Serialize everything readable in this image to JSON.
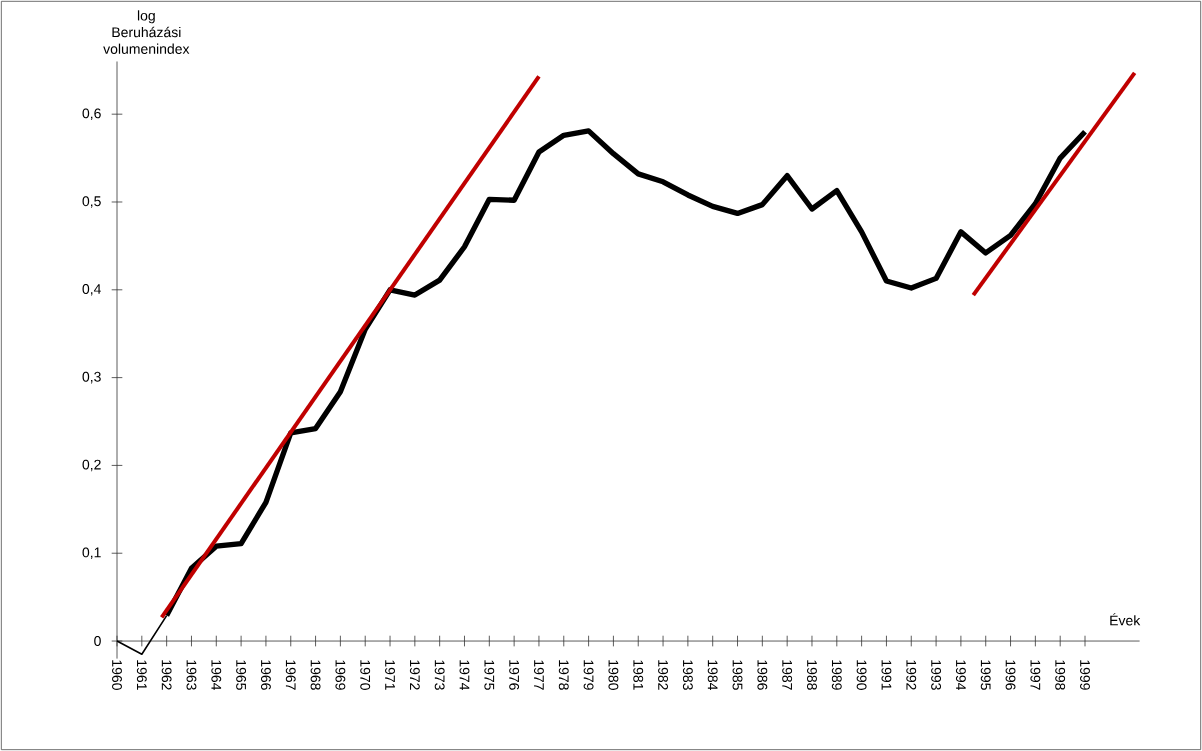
{
  "chart_data": {
    "type": "line",
    "ylabel": "log Beruházási volumenindex",
    "xlabel": "Évek",
    "xlim": [
      1960,
      2001.2
    ],
    "ylim": [
      -0.02,
      0.66
    ],
    "xticks": [
      1960,
      1961,
      1962,
      1963,
      1964,
      1965,
      1966,
      1967,
      1968,
      1969,
      1970,
      1971,
      1972,
      1973,
      1974,
      1975,
      1976,
      1977,
      1978,
      1979,
      1980,
      1981,
      1982,
      1983,
      1984,
      1985,
      1986,
      1987,
      1988,
      1989,
      1990,
      1991,
      1992,
      1993,
      1994,
      1995,
      1996,
      1997,
      1998,
      1999
    ],
    "yticks": [
      0,
      {
        "value": 0.1,
        "label": "0,1"
      },
      {
        "value": 0.2,
        "label": "0,2"
      },
      {
        "value": 0.3,
        "label": "0,3"
      },
      {
        "value": 0.4,
        "label": "0,4"
      },
      {
        "value": 0.5,
        "label": "0,5"
      },
      {
        "value": 0.6,
        "label": "0,6"
      }
    ],
    "series": [
      {
        "color": "#000000",
        "x": [
          1960,
          1961,
          1962
        ],
        "values": [
          0,
          -0.015,
          0.029
        ]
      },
      {
        "color": "#000000",
        "x": [
          1962,
          1963,
          1964,
          1965,
          1966,
          1967,
          1968,
          1969,
          1970,
          1971,
          1972,
          1973,
          1974,
          1975,
          1976,
          1977,
          1978,
          1979,
          1980,
          1981,
          1982,
          1983,
          1984,
          1985,
          1986,
          1987,
          1988,
          1989,
          1990,
          1991,
          1992,
          1993,
          1994,
          1995,
          1996,
          1997,
          1998,
          1999
        ],
        "values": [
          0.029,
          0.083,
          0.108,
          0.111,
          0.158,
          0.237,
          0.242,
          0.284,
          0.355,
          0.4,
          0.394,
          0.411,
          0.449,
          0.503,
          0.502,
          0.557,
          0.576,
          0.581,
          0.555,
          0.532,
          0.523,
          0.508,
          0.495,
          0.487,
          0.497,
          0.53,
          0.492,
          0.513,
          0.466,
          0.41,
          0.402,
          0.413,
          0.466,
          0.442,
          0.462,
          0.498,
          0.55,
          0.58
        ]
      },
      {
        "color": "#c00000",
        "x": [
          1961.8,
          1977.0
        ],
        "values": [
          0.027,
          0.643
        ]
      },
      {
        "color": "#c00000",
        "x": [
          1994.5,
          2001.0
        ],
        "values": [
          0.394,
          0.647
        ]
      }
    ]
  }
}
